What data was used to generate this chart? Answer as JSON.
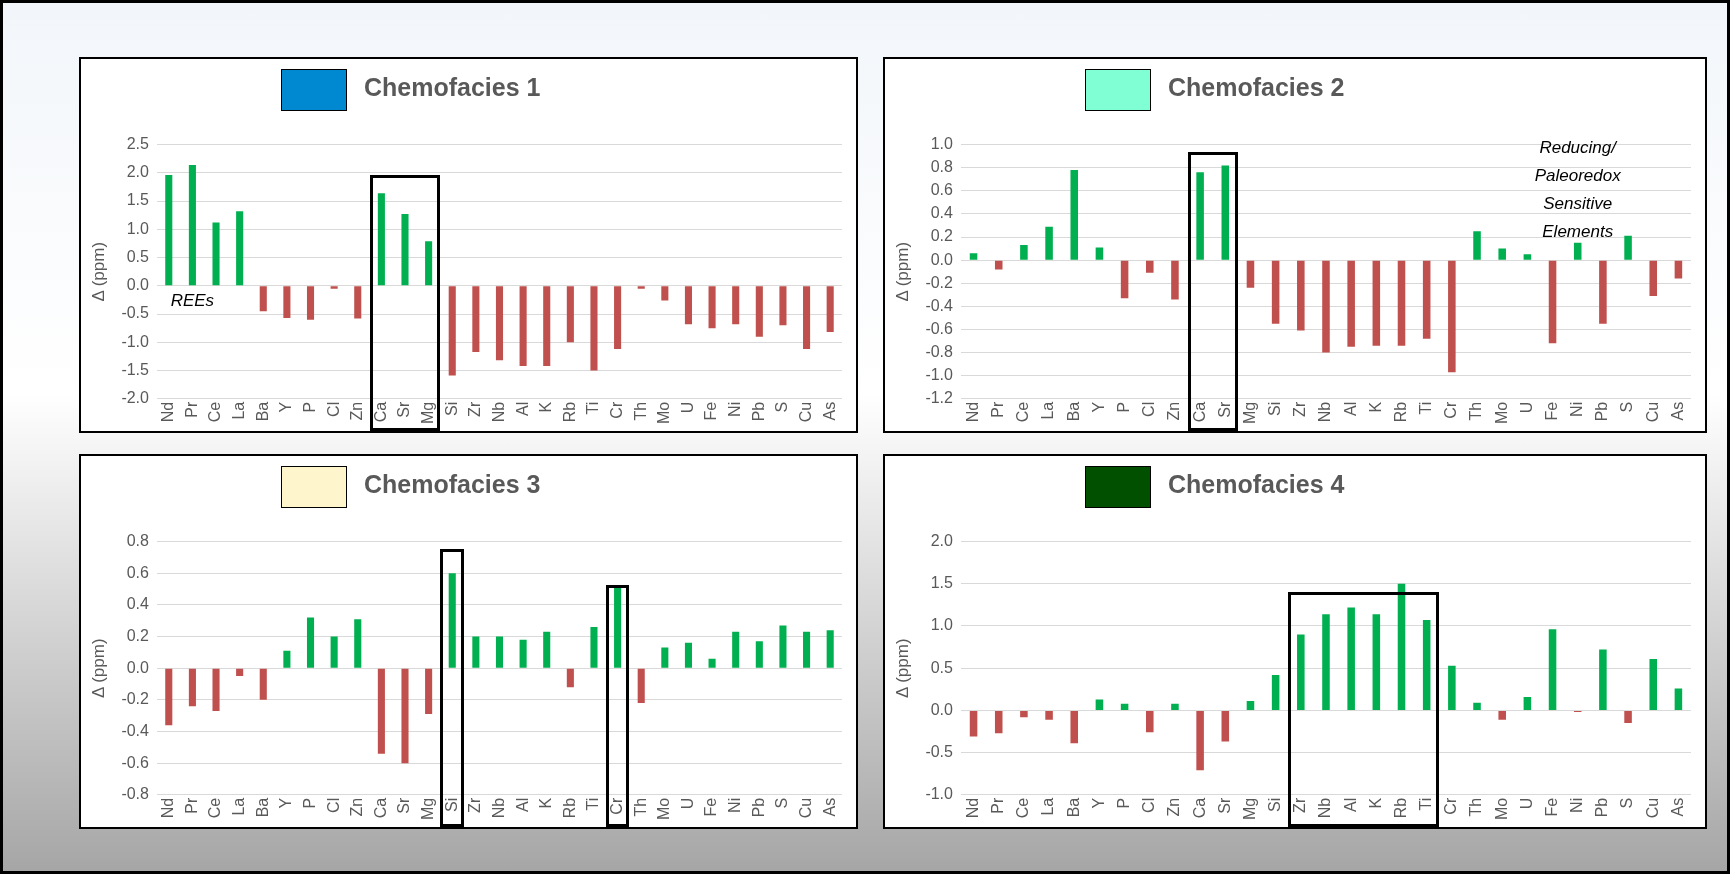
{
  "chart_data": [
    {
      "type": "bar",
      "title": "Chemofacies 1",
      "ylabel": "Δ (ppm)",
      "grid": "y",
      "categories": [
        "Nd",
        "Pr",
        "Ce",
        "La",
        "Ba",
        "Y",
        "P",
        "Cl",
        "Zn",
        "Ca",
        "Sr",
        "Mg",
        "Si",
        "Zr",
        "Nb",
        "Al",
        "K",
        "Rb",
        "Ti",
        "Cr",
        "Th",
        "Mo",
        "U",
        "Fe",
        "Ni",
        "Pb",
        "S",
        "Cu",
        "As"
      ],
      "values": [
        1.96,
        2.14,
        1.12,
        1.32,
        -0.45,
        -0.57,
        -0.6,
        -0.05,
        -0.58,
        1.64,
        1.27,
        0.79,
        -1.59,
        -1.17,
        -1.32,
        -1.42,
        -1.42,
        -1.0,
        -1.5,
        -1.12,
        -0.05,
        -0.26,
        -0.68,
        -0.75,
        -0.68,
        -0.9,
        -0.7,
        -1.12,
        -0.82
      ],
      "colors": [
        "#00b050",
        "#00b050",
        "#00b050",
        "#00b050",
        "#c0504d",
        "#c0504d",
        "#c0504d",
        "#c0504d",
        "#c0504d",
        "#00b050",
        "#00b050",
        "#00b050",
        "#c0504d",
        "#c0504d",
        "#c0504d",
        "#c0504d",
        "#c0504d",
        "#c0504d",
        "#c0504d",
        "#c0504d",
        "#c0504d",
        "#c0504d",
        "#c0504d",
        "#c0504d",
        "#c0504d",
        "#c0504d",
        "#c0504d",
        "#c0504d",
        "#c0504d"
      ],
      "ylim": [
        -2,
        2.5
      ],
      "yticks": [
        {
          "value": -2,
          "label": "-2.0"
        },
        -1.5,
        {
          "value": -1,
          "label": "-1.0"
        },
        -0.5,
        {
          "value": 0,
          "label": "0.0"
        },
        0.5,
        {
          "value": 1,
          "label": "1.0"
        },
        1.5,
        {
          "value": 2,
          "label": "2.0"
        },
        2.5
      ],
      "annotations": [
        "REEs"
      ]
    },
    {
      "type": "bar",
      "title": "Chemofacies 2",
      "ylabel": "Δ (ppm)",
      "grid": "y",
      "categories": [
        "Nd",
        "Pr",
        "Ce",
        "La",
        "Ba",
        "Y",
        "P",
        "Cl",
        "Zn",
        "Ca",
        "Sr",
        "Mg",
        "Si",
        "Zr",
        "Nb",
        "Al",
        "K",
        "Rb",
        "Ti",
        "Cr",
        "Th",
        "Mo",
        "U",
        "Fe",
        "Ni",
        "Pb",
        "S",
        "Cu",
        "As"
      ],
      "values": [
        0.06,
        -0.08,
        0.13,
        0.29,
        0.78,
        0.11,
        -0.33,
        -0.11,
        -0.34,
        0.76,
        0.82,
        -0.24,
        -0.55,
        -0.61,
        -0.8,
        -0.75,
        -0.74,
        -0.74,
        -0.68,
        -0.97,
        0.25,
        0.1,
        0.05,
        -0.72,
        0.15,
        -0.55,
        0.21,
        -0.31,
        -0.16
      ],
      "colors": [
        "#00b050",
        "#c0504d",
        "#00b050",
        "#00b050",
        "#00b050",
        "#00b050",
        "#c0504d",
        "#c0504d",
        "#c0504d",
        "#00b050",
        "#00b050",
        "#c0504d",
        "#c0504d",
        "#c0504d",
        "#c0504d",
        "#c0504d",
        "#c0504d",
        "#c0504d",
        "#c0504d",
        "#c0504d",
        "#00b050",
        "#00b050",
        "#00b050",
        "#c0504d",
        "#00b050",
        "#c0504d",
        "#00b050",
        "#c0504d",
        "#c0504d"
      ],
      "ylim": [
        -1.2,
        1
      ],
      "yticks": [
        -1.2,
        {
          "value": -1,
          "label": "-1.0"
        },
        -0.8,
        -0.6,
        -0.4,
        -0.2,
        {
          "value": 0,
          "label": "0.0"
        },
        0.2,
        0.4,
        0.6,
        0.8,
        {
          "value": 1,
          "label": "1.0"
        }
      ],
      "annotations": [
        "Reducing/\nPaleoredox\nSensitive\nElements"
      ]
    },
    {
      "type": "bar",
      "title": "Chemofacies 3",
      "ylabel": "Δ (ppm)",
      "grid": "y",
      "categories": [
        "Nd",
        "Pr",
        "Ce",
        "La",
        "Ba",
        "Y",
        "P",
        "Cl",
        "Zn",
        "Ca",
        "Sr",
        "Mg",
        "Si",
        "Zr",
        "Nb",
        "Al",
        "K",
        "Rb",
        "Ti",
        "Cr",
        "Th",
        "Mo",
        "U",
        "Fe",
        "Ni",
        "Pb",
        "S",
        "Cu",
        "As"
      ],
      "values": [
        -0.36,
        -0.24,
        -0.27,
        -0.05,
        -0.2,
        0.11,
        0.32,
        0.2,
        0.31,
        -0.54,
        -0.6,
        -0.29,
        0.6,
        0.2,
        0.2,
        0.18,
        0.23,
        -0.12,
        0.26,
        0.52,
        -0.22,
        0.13,
        0.16,
        0.06,
        0.23,
        0.17,
        0.27,
        0.23,
        0.24
      ],
      "colors": [
        "#c0504d",
        "#c0504d",
        "#c0504d",
        "#c0504d",
        "#c0504d",
        "#00b050",
        "#00b050",
        "#00b050",
        "#00b050",
        "#c0504d",
        "#c0504d",
        "#c0504d",
        "#00b050",
        "#00b050",
        "#00b050",
        "#00b050",
        "#00b050",
        "#c0504d",
        "#00b050",
        "#00b050",
        "#c0504d",
        "#00b050",
        "#00b050",
        "#00b050",
        "#00b050",
        "#00b050",
        "#00b050",
        "#00b050",
        "#00b050"
      ],
      "ylim": [
        -0.8,
        0.8
      ],
      "yticks": [
        -0.8,
        -0.6,
        -0.4,
        -0.2,
        {
          "value": 0,
          "label": "0.0"
        },
        0.2,
        0.4,
        0.6,
        0.8
      ]
    },
    {
      "type": "bar",
      "title": "Chemofacies 4",
      "ylabel": "Δ (ppm)",
      "grid": "y",
      "categories": [
        "Nd",
        "Pr",
        "Ce",
        "La",
        "Ba",
        "Y",
        "P",
        "Cl",
        "Zn",
        "Ca",
        "Sr",
        "Mg",
        "Si",
        "Zr",
        "Nb",
        "Al",
        "K",
        "Rb",
        "Ti",
        "Cr",
        "Th",
        "Mo",
        "U",
        "Fe",
        "Ni",
        "Pb",
        "S",
        "Cu",
        "As"
      ],
      "values": [
        -0.31,
        -0.27,
        -0.08,
        -0.11,
        -0.39,
        0.13,
        0.08,
        -0.26,
        0.08,
        -0.71,
        -0.37,
        0.11,
        0.42,
        0.9,
        1.14,
        1.22,
        1.14,
        1.5,
        1.07,
        0.53,
        0.09,
        -0.11,
        0.16,
        0.96,
        -0.02,
        0.72,
        -0.15,
        0.61,
        0.26
      ],
      "colors": [
        "#c0504d",
        "#c0504d",
        "#c0504d",
        "#c0504d",
        "#c0504d",
        "#00b050",
        "#00b050",
        "#c0504d",
        "#00b050",
        "#c0504d",
        "#c0504d",
        "#00b050",
        "#00b050",
        "#00b050",
        "#00b050",
        "#00b050",
        "#00b050",
        "#00b050",
        "#00b050",
        "#00b050",
        "#00b050",
        "#c0504d",
        "#00b050",
        "#00b050",
        "#c0504d",
        "#00b050",
        "#c0504d",
        "#00b050",
        "#00b050"
      ],
      "ylim": [
        -1,
        2
      ],
      "yticks": [
        {
          "value": -1,
          "label": "-1.0"
        },
        -0.5,
        {
          "value": 0,
          "label": "0.0"
        },
        0.5,
        {
          "value": 1,
          "label": "1.0"
        },
        1.5,
        {
          "value": 2,
          "label": "2.0"
        }
      ]
    }
  ]
}
